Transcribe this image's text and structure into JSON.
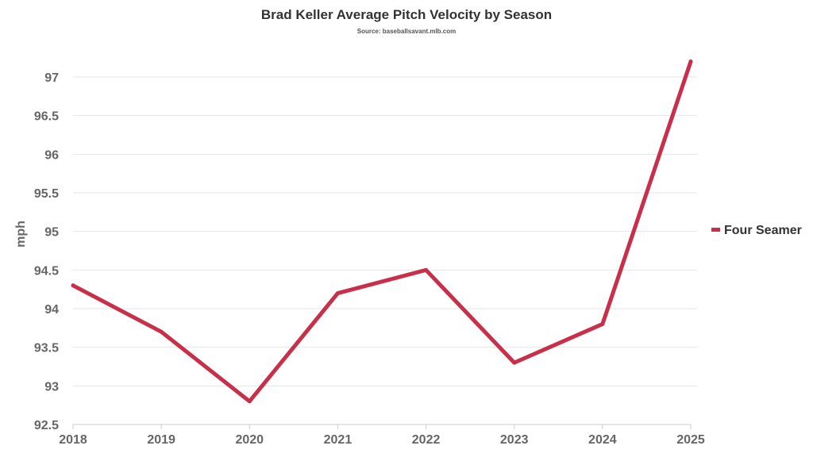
{
  "chart_data": {
    "type": "line",
    "title": "Brad Keller Average Pitch Velocity by Season",
    "subtitle": "Source: baseballsavant.mlb.com",
    "xlabel": "",
    "ylabel": "mph",
    "x": [
      "2018",
      "2019",
      "2020",
      "2021",
      "2022",
      "2023",
      "2024",
      "2025"
    ],
    "ylim": [
      92.5,
      97
    ],
    "y_ticks": [
      "92.5",
      "93",
      "93.5",
      "94",
      "94.5",
      "95",
      "95.5",
      "96",
      "96.5",
      "97"
    ],
    "grid": true,
    "legend_position": "right",
    "series": [
      {
        "name": "Four Seamer",
        "color": "#c8304a",
        "values": [
          94.3,
          93.7,
          92.8,
          94.2,
          94.5,
          93.3,
          93.8,
          97.2
        ]
      }
    ]
  }
}
